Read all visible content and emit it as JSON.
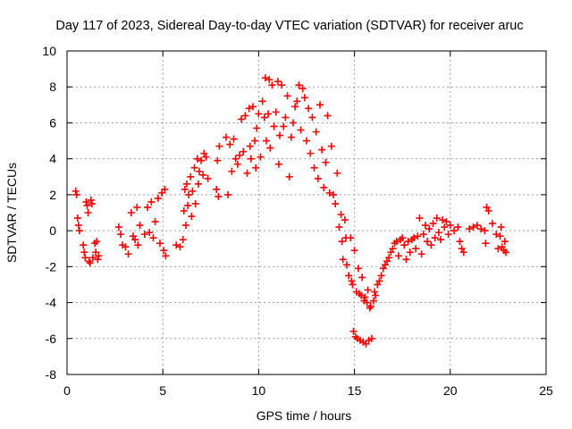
{
  "chart_data": {
    "type": "scatter",
    "title": "Day 117 of 2023, Sidereal Day-to-day VTEC variation (SDTVAR) for receiver aruc",
    "xlabel": "GPS time / hours",
    "ylabel": "SDTVAR / TECUs",
    "xlim": [
      0,
      25
    ],
    "ylim": [
      -8,
      10
    ],
    "xticks": [
      0,
      5,
      10,
      15,
      20,
      25
    ],
    "yticks": [
      -8,
      -6,
      -4,
      -2,
      0,
      2,
      4,
      6,
      8,
      10
    ],
    "xtick_labels": [
      "0",
      "5",
      "10",
      "15",
      "20",
      "25"
    ],
    "ytick_labels": [
      "-8",
      "-6",
      "-4",
      "-2",
      "0",
      "2",
      "4",
      "6",
      "8",
      "10"
    ],
    "grid": true,
    "marker": "+",
    "marker_color": "#ff0000",
    "series": [
      {
        "name": "SDTVAR",
        "points": [
          [
            0.45,
            2.2
          ],
          [
            0.5,
            2.0
          ],
          [
            0.55,
            0.7
          ],
          [
            0.6,
            0.3
          ],
          [
            0.65,
            0.0
          ],
          [
            0.85,
            -0.8
          ],
          [
            0.9,
            -1.2
          ],
          [
            0.95,
            -1.5
          ],
          [
            1.0,
            1.6
          ],
          [
            1.05,
            1.4
          ],
          [
            1.1,
            1.0
          ],
          [
            1.15,
            -1.7
          ],
          [
            1.2,
            -1.8
          ],
          [
            1.25,
            1.7
          ],
          [
            1.3,
            1.5
          ],
          [
            1.35,
            -1.5
          ],
          [
            1.45,
            -0.7
          ],
          [
            1.5,
            -1.2
          ],
          [
            1.55,
            -0.6
          ],
          [
            1.6,
            -1.6
          ],
          [
            1.65,
            -1.4
          ],
          [
            2.7,
            0.2
          ],
          [
            2.8,
            -0.2
          ],
          [
            2.9,
            -0.8
          ],
          [
            3.05,
            -0.9
          ],
          [
            3.2,
            -1.3
          ],
          [
            3.35,
            1.0
          ],
          [
            3.45,
            -0.3
          ],
          [
            3.55,
            -0.5
          ],
          [
            3.65,
            1.3
          ],
          [
            3.7,
            -0.8
          ],
          [
            3.8,
            0.3
          ],
          [
            4.05,
            -0.2
          ],
          [
            4.2,
            1.3
          ],
          [
            4.3,
            -0.1
          ],
          [
            4.4,
            1.6
          ],
          [
            4.5,
            -0.4
          ],
          [
            4.6,
            0.5
          ],
          [
            4.75,
            1.8
          ],
          [
            4.85,
            -0.7
          ],
          [
            4.95,
            2.1
          ],
          [
            5.05,
            -1.1
          ],
          [
            5.1,
            2.3
          ],
          [
            5.15,
            -1.4
          ],
          [
            5.7,
            -0.8
          ],
          [
            5.9,
            -0.9
          ],
          [
            6.05,
            -0.5
          ],
          [
            6.1,
            1.1
          ],
          [
            6.15,
            2.3
          ],
          [
            6.2,
            0.3
          ],
          [
            6.25,
            2.6
          ],
          [
            6.3,
            1.4
          ],
          [
            6.35,
            2.0
          ],
          [
            6.45,
            3.0
          ],
          [
            6.5,
            0.8
          ],
          [
            6.55,
            2.2
          ],
          [
            6.65,
            3.5
          ],
          [
            6.7,
            1.5
          ],
          [
            6.8,
            4.0
          ],
          [
            6.85,
            2.6
          ],
          [
            6.9,
            3.3
          ],
          [
            7.0,
            3.9
          ],
          [
            7.1,
            3.1
          ],
          [
            7.15,
            4.3
          ],
          [
            7.25,
            4.1
          ],
          [
            7.35,
            2.9
          ],
          [
            7.8,
            2.3
          ],
          [
            7.85,
            3.9
          ],
          [
            7.9,
            1.9
          ],
          [
            7.95,
            4.7
          ],
          [
            8.3,
            5.2
          ],
          [
            8.4,
            2.0
          ],
          [
            8.5,
            4.8
          ],
          [
            8.6,
            3.3
          ],
          [
            8.7,
            5.1
          ],
          [
            8.8,
            4.0
          ],
          [
            8.9,
            3.7
          ],
          [
            9.0,
            4.2
          ],
          [
            9.1,
            6.2
          ],
          [
            9.2,
            4.4
          ],
          [
            9.3,
            6.4
          ],
          [
            9.4,
            3.2
          ],
          [
            9.5,
            6.8
          ],
          [
            9.55,
            4.7
          ],
          [
            9.6,
            4.0
          ],
          [
            9.7,
            6.9
          ],
          [
            9.8,
            5.0
          ],
          [
            9.85,
            3.5
          ],
          [
            9.9,
            5.7
          ],
          [
            10.0,
            6.5
          ],
          [
            10.1,
            4.1
          ],
          [
            10.2,
            7.2
          ],
          [
            10.3,
            6.3
          ],
          [
            10.35,
            8.5
          ],
          [
            10.4,
            5.0
          ],
          [
            10.5,
            6.5
          ],
          [
            10.55,
            8.4
          ],
          [
            10.6,
            4.6
          ],
          [
            10.7,
            8.1
          ],
          [
            10.8,
            5.8
          ],
          [
            10.9,
            6.6
          ],
          [
            11.0,
            8.3
          ],
          [
            11.05,
            3.7
          ],
          [
            11.1,
            5.3
          ],
          [
            11.2,
            8.1
          ],
          [
            11.3,
            5.8
          ],
          [
            11.4,
            6.3
          ],
          [
            11.5,
            7.5
          ],
          [
            11.6,
            3.0
          ],
          [
            11.7,
            5.2
          ],
          [
            11.8,
            6.0
          ],
          [
            11.9,
            6.9
          ],
          [
            12.0,
            7.2
          ],
          [
            12.1,
            8.1
          ],
          [
            12.2,
            5.6
          ],
          [
            12.3,
            7.9
          ],
          [
            12.4,
            7.4
          ],
          [
            12.5,
            5.0
          ],
          [
            12.6,
            6.8
          ],
          [
            12.7,
            4.3
          ],
          [
            12.8,
            6.3
          ],
          [
            12.9,
            3.5
          ],
          [
            13.0,
            5.5
          ],
          [
            13.1,
            2.9
          ],
          [
            13.2,
            7.0
          ],
          [
            13.3,
            4.5
          ],
          [
            13.4,
            2.4
          ],
          [
            13.5,
            3.8
          ],
          [
            13.6,
            6.4
          ],
          [
            13.7,
            2.1
          ],
          [
            13.8,
            4.7
          ],
          [
            13.9,
            2.0
          ],
          [
            14.0,
            1.5
          ],
          [
            14.1,
            3.2
          ],
          [
            14.2,
            0.2
          ],
          [
            14.3,
            0.9
          ],
          [
            14.35,
            -0.6
          ],
          [
            14.4,
            -1.6
          ],
          [
            14.5,
            0.6
          ],
          [
            14.55,
            -0.4
          ],
          [
            14.6,
            -1.9
          ],
          [
            14.7,
            -2.5
          ],
          [
            14.8,
            -0.4
          ],
          [
            14.85,
            -2.8
          ],
          [
            14.9,
            -3.0
          ],
          [
            14.95,
            -5.6
          ],
          [
            15.0,
            -1.1
          ],
          [
            15.05,
            -5.9
          ],
          [
            15.1,
            -3.4
          ],
          [
            15.15,
            -6.0
          ],
          [
            15.2,
            -2.1
          ],
          [
            15.25,
            -3.5
          ],
          [
            15.3,
            -6.1
          ],
          [
            15.35,
            -3.6
          ],
          [
            15.4,
            -2.6
          ],
          [
            15.45,
            -6.2
          ],
          [
            15.5,
            -3.9
          ],
          [
            15.55,
            -3.7
          ],
          [
            15.6,
            -6.3
          ],
          [
            15.65,
            -4.0
          ],
          [
            15.7,
            -3.3
          ],
          [
            15.75,
            -6.1
          ],
          [
            15.8,
            -4.3
          ],
          [
            15.85,
            -4.2
          ],
          [
            15.9,
            -6.0
          ],
          [
            16.0,
            -3.9
          ],
          [
            16.05,
            -3.4
          ],
          [
            16.1,
            -3.6
          ],
          [
            16.2,
            -3.0
          ],
          [
            16.3,
            -2.8
          ],
          [
            16.4,
            -2.5
          ],
          [
            16.5,
            -2.1
          ],
          [
            16.6,
            -1.9
          ],
          [
            16.7,
            -1.7
          ],
          [
            16.8,
            -1.5
          ],
          [
            16.9,
            -1.2
          ],
          [
            17.0,
            -1.0
          ],
          [
            17.1,
            -0.7
          ],
          [
            17.2,
            -0.6
          ],
          [
            17.3,
            -1.4
          ],
          [
            17.4,
            -0.5
          ],
          [
            17.5,
            -0.4
          ],
          [
            17.6,
            -0.8
          ],
          [
            17.7,
            -1.6
          ],
          [
            17.8,
            -0.6
          ],
          [
            17.9,
            -1.2
          ],
          [
            18.0,
            -0.5
          ],
          [
            18.1,
            -0.4
          ],
          [
            18.2,
            -1.0
          ],
          [
            18.3,
            -0.3
          ],
          [
            18.4,
            0.7
          ],
          [
            18.5,
            -1.3
          ],
          [
            18.6,
            -0.2
          ],
          [
            18.7,
            0.3
          ],
          [
            18.8,
            -0.6
          ],
          [
            18.9,
            0.1
          ],
          [
            19.0,
            -0.8
          ],
          [
            19.1,
            0.4
          ],
          [
            19.2,
            -0.4
          ],
          [
            19.3,
            0.7
          ],
          [
            19.4,
            -0.1
          ],
          [
            19.5,
            -0.5
          ],
          [
            19.6,
            0.6
          ],
          [
            19.7,
            0.2
          ],
          [
            19.8,
            0.5
          ],
          [
            19.9,
            -0.2
          ],
          [
            20.0,
            0.3
          ],
          [
            20.2,
            0.0
          ],
          [
            20.4,
            0.2
          ],
          [
            20.5,
            -0.6
          ],
          [
            20.6,
            -1.0
          ],
          [
            20.7,
            -1.2
          ],
          [
            21.0,
            0.1
          ],
          [
            21.2,
            0.2
          ],
          [
            21.4,
            0.3
          ],
          [
            21.6,
            0.1
          ],
          [
            21.8,
            0.0
          ],
          [
            21.85,
            -0.7
          ],
          [
            21.9,
            1.3
          ],
          [
            22.0,
            1.1
          ],
          [
            22.2,
            0.4
          ],
          [
            22.4,
            -0.2
          ],
          [
            22.5,
            -1.0
          ],
          [
            22.6,
            -0.3
          ],
          [
            22.65,
            0.2
          ],
          [
            22.7,
            -0.9
          ],
          [
            22.8,
            -1.1
          ],
          [
            22.85,
            -0.6
          ],
          [
            22.9,
            -1.2
          ]
        ]
      }
    ]
  }
}
